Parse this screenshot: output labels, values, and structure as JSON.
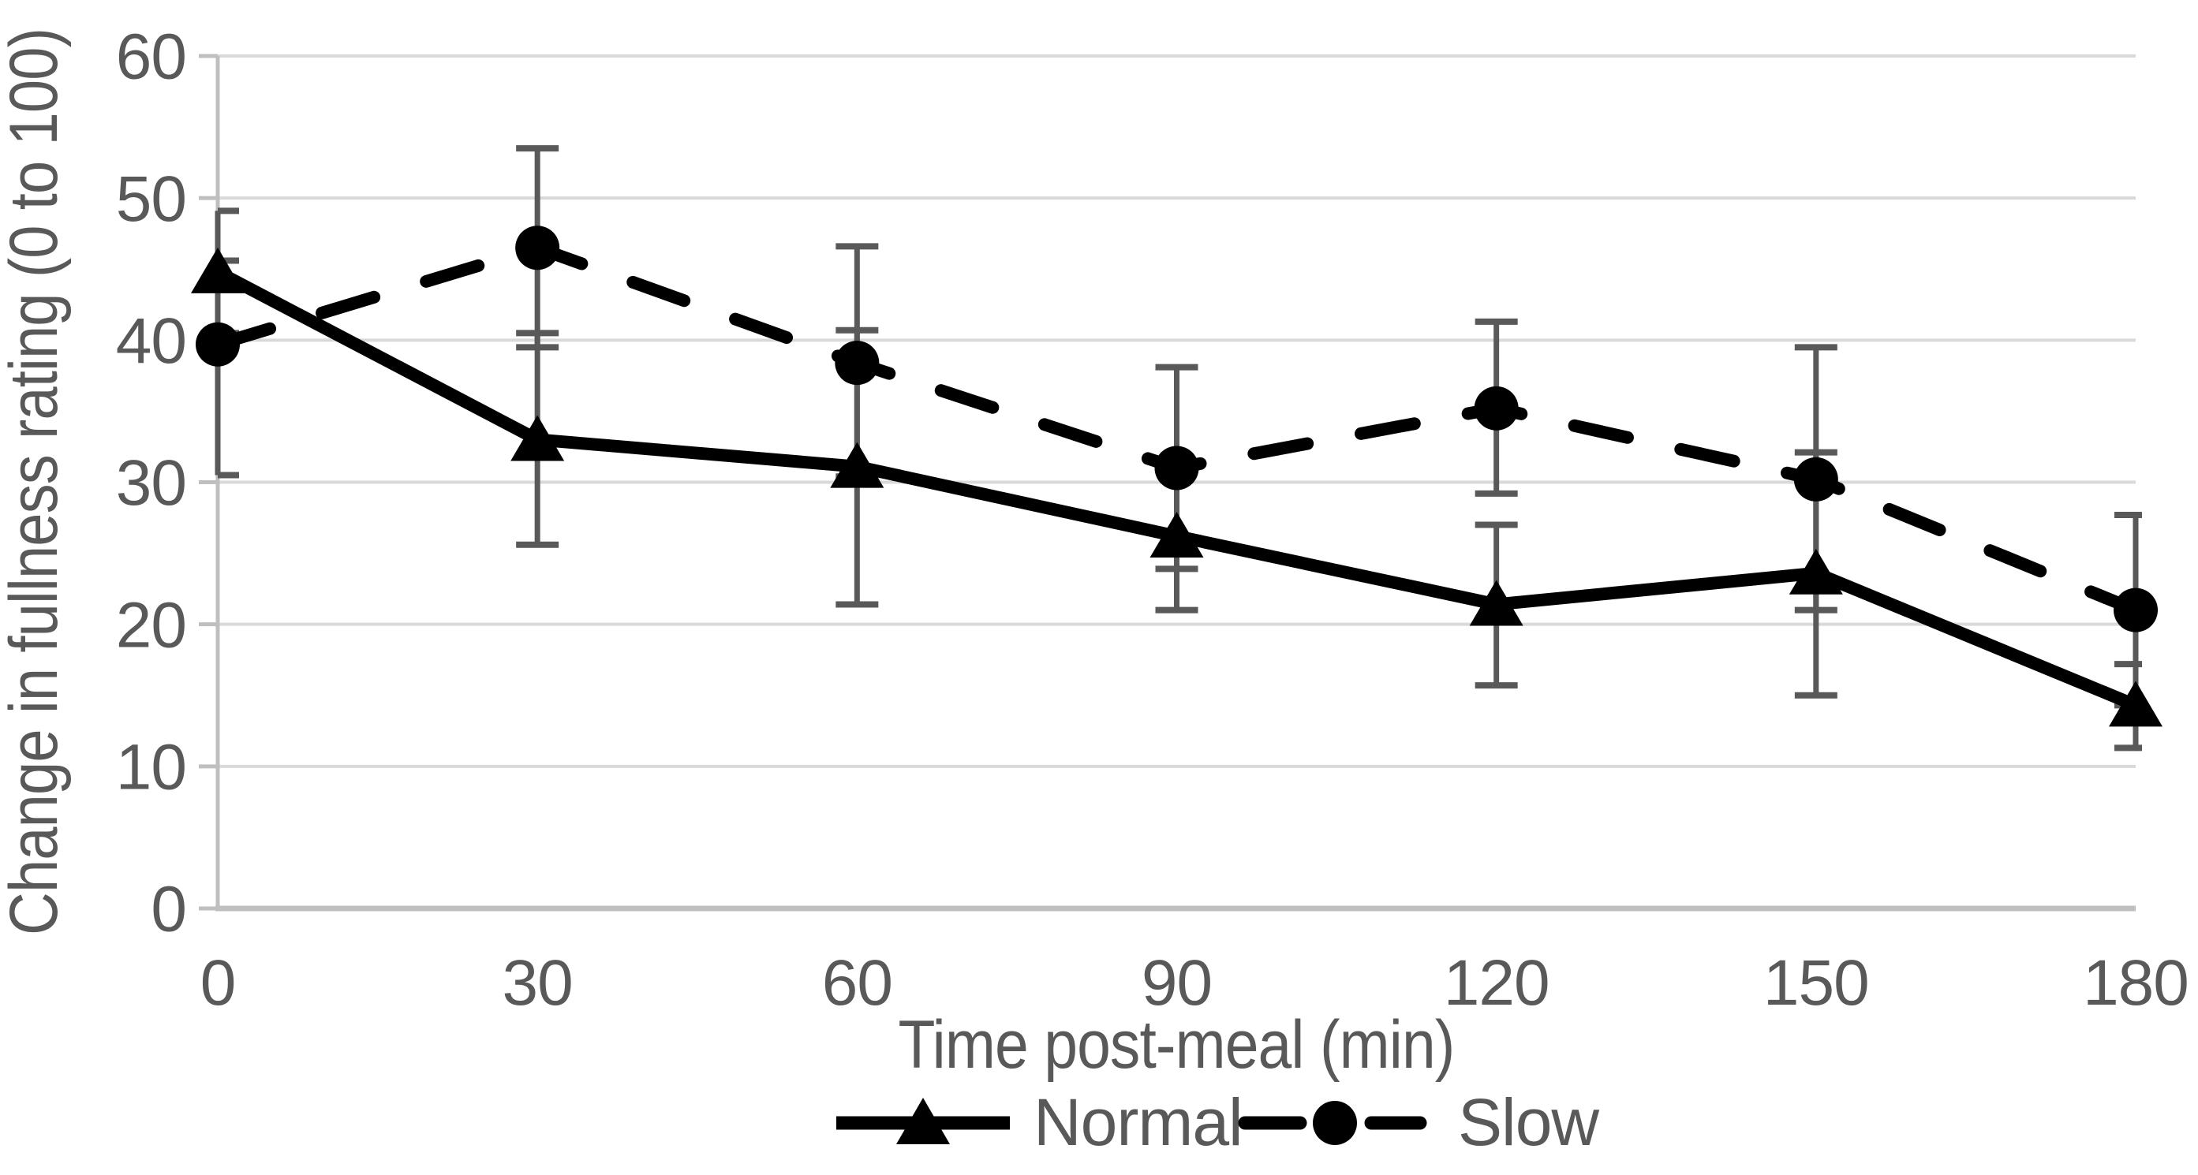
{
  "chart_data": {
    "type": "line",
    "title": "",
    "xlabel": "Time post-meal (min)",
    "ylabel": "Change in fullness rating (0 to 100)",
    "x_categories": [
      "0",
      "30",
      "60",
      "90",
      "120",
      "150",
      "180"
    ],
    "y_ticks": [
      0,
      10,
      20,
      30,
      40,
      50,
      60
    ],
    "ylim": [
      0,
      60
    ],
    "grid": "horizontal-only",
    "legend_position": "bottom-center",
    "series": [
      {
        "name": "Normal",
        "marker": "triangle",
        "line_style": "solid",
        "values": [
          44.8,
          33.0,
          31.1,
          26.2,
          21.4,
          23.6,
          14.3
        ],
        "error_up": [
          4.3,
          7.5,
          9.6,
          5.0,
          5.6,
          8.5,
          2.9
        ],
        "error_down": [
          4.3,
          7.4,
          9.7,
          5.2,
          5.7,
          8.6,
          3.0
        ]
      },
      {
        "name": "Slow",
        "marker": "circle",
        "line_style": "dashed",
        "values": [
          39.7,
          46.5,
          38.4,
          31.0,
          35.2,
          30.2,
          21.0
        ],
        "error_up": [
          5.9,
          7.0,
          8.2,
          7.1,
          6.1,
          9.3,
          6.7
        ],
        "error_down": [
          9.2,
          7.0,
          8.0,
          7.1,
          6.0,
          9.2,
          6.7
        ]
      }
    ],
    "colors": {
      "series": "#000000",
      "error_bar": "#595959",
      "gridline": "#D9D9D9",
      "axis_line": "#BFBFBF",
      "label_text": "#595959",
      "background": "#FFFFFF"
    }
  }
}
